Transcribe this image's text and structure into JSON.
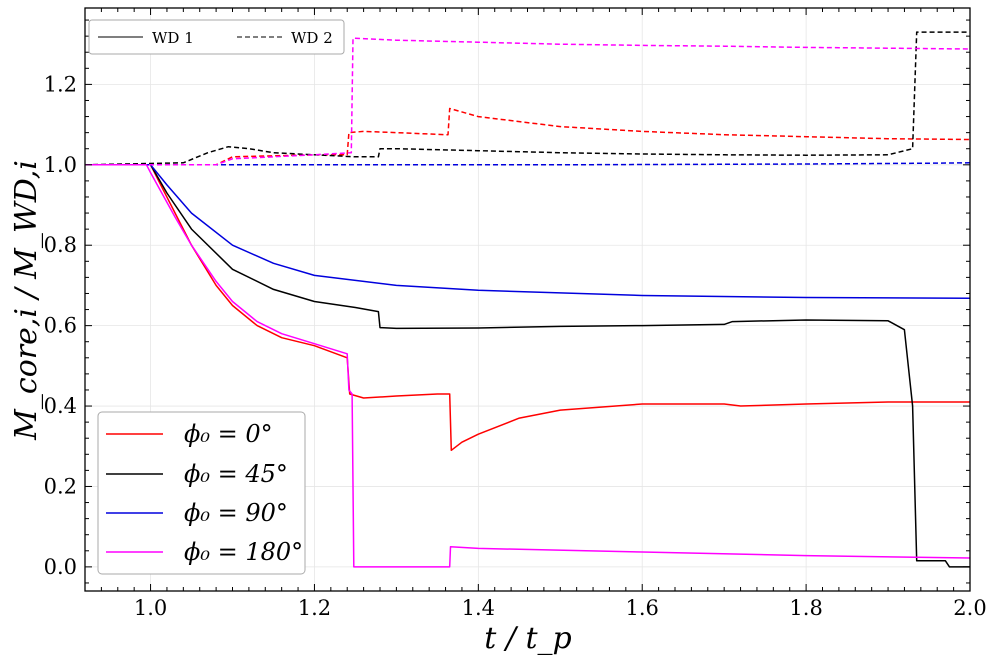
{
  "chart_data": {
    "type": "line",
    "title": "",
    "xlabel": "t / t_p",
    "ylabel": "M_core,i / M_WD,i",
    "xlim": [
      0.92,
      2.0
    ],
    "ylim": [
      -0.06,
      1.39
    ],
    "xticks": [
      1.0,
      1.2,
      1.4,
      1.6,
      1.8,
      2.0
    ],
    "yticks": [
      0.0,
      0.2,
      0.4,
      0.6,
      0.8,
      1.0,
      1.2
    ],
    "xtick_labels": [
      "1.0",
      "1.2",
      "1.4",
      "1.6",
      "1.8",
      "2.0"
    ],
    "ytick_labels": [
      "0.0",
      "0.2",
      "0.4",
      "0.6",
      "0.8",
      "1.0",
      "1.2"
    ],
    "grid": true,
    "style_legend": {
      "position": "top-left",
      "entries": [
        {
          "label": "WD 1",
          "style": "solid",
          "color": "#555555"
        },
        {
          "label": "WD 2",
          "style": "dashed",
          "color": "#555555"
        }
      ]
    },
    "color_legend": {
      "position": "bottom-left",
      "entries": [
        {
          "label": "ϕ₀ = 0°",
          "color": "#ff0000"
        },
        {
          "label": "ϕ₀ = 45°",
          "color": "#000000"
        },
        {
          "label": "ϕ₀ = 90°",
          "color": "#0000dd"
        },
        {
          "label": "ϕ₀ = 180°",
          "color": "#ff00ff"
        }
      ]
    },
    "series": [
      {
        "name": "WD 1 ϕ₀ = 0°",
        "color": "#ff0000",
        "dash": false,
        "x": [
          0.92,
          1.0,
          1.01,
          1.03,
          1.05,
          1.08,
          1.1,
          1.13,
          1.16,
          1.2,
          1.24,
          1.243,
          1.26,
          1.3,
          1.35,
          1.365,
          1.367,
          1.38,
          1.4,
          1.45,
          1.5,
          1.6,
          1.7,
          1.72,
          1.8,
          1.9,
          2.0
        ],
        "y": [
          1.0,
          1.0,
          0.96,
          0.88,
          0.8,
          0.7,
          0.65,
          0.6,
          0.57,
          0.55,
          0.52,
          0.43,
          0.42,
          0.425,
          0.43,
          0.43,
          0.29,
          0.31,
          0.33,
          0.37,
          0.39,
          0.405,
          0.405,
          0.4,
          0.405,
          0.41,
          0.41
        ]
      },
      {
        "name": "WD 1 ϕ₀ = 45°",
        "color": "#000000",
        "dash": false,
        "x": [
          0.92,
          1.0,
          1.02,
          1.05,
          1.1,
          1.15,
          1.2,
          1.25,
          1.278,
          1.28,
          1.3,
          1.4,
          1.5,
          1.6,
          1.7,
          1.71,
          1.8,
          1.9,
          1.92,
          1.93,
          1.935,
          1.97,
          1.975,
          2.0
        ],
        "y": [
          1.0,
          1.0,
          0.93,
          0.84,
          0.74,
          0.69,
          0.66,
          0.645,
          0.635,
          0.595,
          0.593,
          0.594,
          0.598,
          0.6,
          0.603,
          0.61,
          0.614,
          0.612,
          0.59,
          0.4,
          0.015,
          0.015,
          0.0,
          0.0
        ]
      },
      {
        "name": "WD 1 ϕ₀ = 90°",
        "color": "#0000dd",
        "dash": false,
        "x": [
          0.92,
          1.0,
          1.02,
          1.05,
          1.1,
          1.15,
          1.2,
          1.3,
          1.4,
          1.6,
          1.8,
          2.0
        ],
        "y": [
          1.0,
          1.0,
          0.95,
          0.88,
          0.8,
          0.755,
          0.725,
          0.7,
          0.688,
          0.675,
          0.67,
          0.668
        ]
      },
      {
        "name": "WD 1 ϕ₀ = 180°",
        "color": "#ff00ff",
        "dash": false,
        "x": [
          0.92,
          0.995,
          1.0,
          1.03,
          1.05,
          1.08,
          1.1,
          1.13,
          1.16,
          1.2,
          1.24,
          1.242,
          1.246,
          1.248,
          1.365,
          1.366,
          1.4,
          1.6,
          1.8,
          2.0
        ],
        "y": [
          1.0,
          1.0,
          0.98,
          0.87,
          0.8,
          0.71,
          0.66,
          0.61,
          0.58,
          0.555,
          0.53,
          0.44,
          0.43,
          0.0,
          0.0,
          0.05,
          0.046,
          0.037,
          0.028,
          0.022
        ]
      },
      {
        "name": "WD 2 ϕ₀ = 0°",
        "color": "#ff0000",
        "dash": true,
        "x": [
          0.92,
          1.08,
          1.1,
          1.2,
          1.24,
          1.242,
          1.26,
          1.3,
          1.36,
          1.363,
          1.365,
          1.4,
          1.5,
          1.6,
          1.7,
          1.8,
          1.9,
          2.0
        ],
        "y": [
          1.0,
          1.0,
          1.02,
          1.025,
          1.025,
          1.08,
          1.083,
          1.08,
          1.075,
          1.075,
          1.14,
          1.12,
          1.095,
          1.083,
          1.075,
          1.07,
          1.065,
          1.063
        ]
      },
      {
        "name": "WD 2 ϕ₀ = 45°",
        "color": "#000000",
        "dash": true,
        "x": [
          0.92,
          1.04,
          1.07,
          1.095,
          1.12,
          1.15,
          1.2,
          1.25,
          1.278,
          1.28,
          1.3,
          1.4,
          1.5,
          1.6,
          1.7,
          1.8,
          1.9,
          1.93,
          1.935,
          2.0
        ],
        "y": [
          1.0,
          1.005,
          1.03,
          1.045,
          1.04,
          1.03,
          1.025,
          1.02,
          1.02,
          1.04,
          1.04,
          1.035,
          1.03,
          1.027,
          1.025,
          1.024,
          1.025,
          1.04,
          1.33,
          1.33
        ]
      },
      {
        "name": "WD 2 ϕ₀ = 90°",
        "color": "#0000dd",
        "dash": true,
        "x": [
          0.92,
          1.2,
          1.5,
          1.8,
          1.95,
          2.0
        ],
        "y": [
          1.0,
          1.0,
          1.0,
          1.002,
          1.004,
          1.005
        ]
      },
      {
        "name": "WD 2 ϕ₀ = 180°",
        "color": "#ff00ff",
        "dash": true,
        "x": [
          0.92,
          1.08,
          1.1,
          1.2,
          1.245,
          1.247,
          1.3,
          1.4,
          1.5,
          1.6,
          1.7,
          1.8,
          1.9,
          2.0
        ],
        "y": [
          1.0,
          1.0,
          1.015,
          1.025,
          1.03,
          1.315,
          1.31,
          1.305,
          1.3,
          1.297,
          1.295,
          1.292,
          1.29,
          1.288
        ]
      }
    ]
  }
}
